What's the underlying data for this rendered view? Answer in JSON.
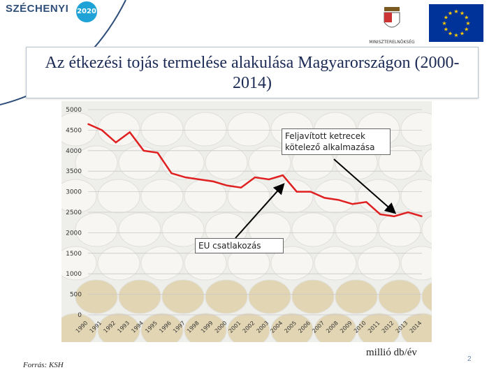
{
  "header": {
    "logo_text": "SZÉCHENYI",
    "logo_badge": "2020",
    "ministry_label": "MINISZTERELNÖKSÉG"
  },
  "title": "Az étkezési tojás termelése alakulása Magyarországon (2000-2014)",
  "chart_data": {
    "type": "line",
    "title": "Az étkezési tojás termelése alakulása Magyarországon (2000-2014)",
    "x": [
      "1990",
      "1991",
      "1992",
      "1993",
      "1994",
      "1995",
      "1996",
      "1997",
      "1998",
      "1999",
      "2000",
      "2001",
      "2002",
      "2003",
      "2004",
      "2005",
      "2006",
      "2007",
      "2008",
      "2009",
      "2010",
      "2011",
      "2012",
      "2013",
      "2014"
    ],
    "series": [
      {
        "values": [
          4650,
          4500,
          4200,
          4450,
          4000,
          3950,
          3450,
          3350,
          3300,
          3250,
          3150,
          3100,
          3350,
          3300,
          3400,
          3000,
          3000,
          2850,
          2800,
          2700,
          2750,
          2450,
          2400,
          2500,
          2400
        ]
      }
    ],
    "ylim": [
      0,
      5000
    ],
    "yticks": [
      0,
      500,
      1000,
      1500,
      2000,
      2500,
      3000,
      3500,
      4000,
      4500,
      5000
    ],
    "unit_label": "millió db/év",
    "grid": true,
    "line_color": "#e02020",
    "annotations": [
      {
        "text": "Feljavított ketrecek kötelező alkalmazása",
        "points_to_year": "2012"
      },
      {
        "text": "EU csatlakozás",
        "points_to_year": "2004"
      }
    ]
  },
  "footer": {
    "source": "Forrás: KSH",
    "page_number": "2"
  }
}
